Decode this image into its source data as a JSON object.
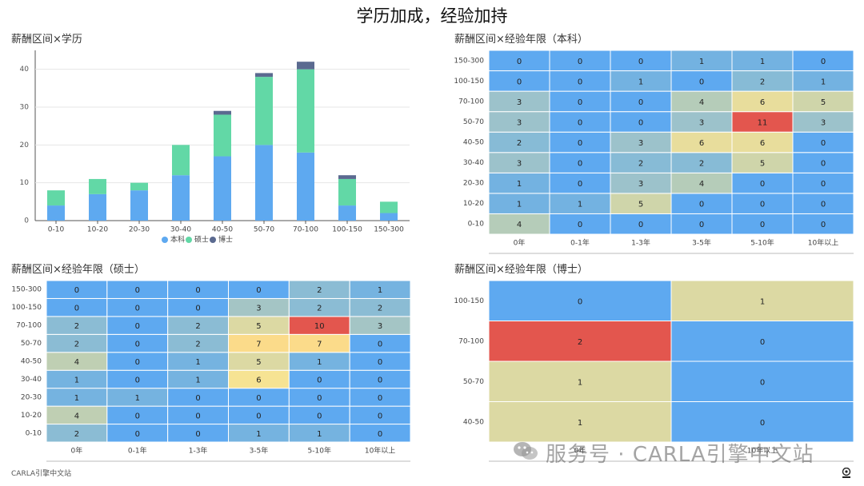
{
  "page_title": "学历加成，经验加持",
  "footer": "CARLA引擎中文站",
  "watermark": "服务号 · CARLA引擎中文站",
  "icons": {
    "wechat": "wechat-icon",
    "corner": "carla-logo-icon"
  },
  "colors": {
    "heat_low": "#5ea9f0",
    "heat_scale": [
      "#5ea9f0",
      "#7bb6dc",
      "#96c0cf",
      "#b8cdb7",
      "#dcd9a3",
      "#fde58f",
      "#fad486",
      "#f5a97a",
      "#e3564e"
    ],
    "bachelor": "#5ea9f0",
    "master": "#62d8a6",
    "phd": "#5b6a90"
  },
  "chart_data": [
    {
      "type": "bar",
      "stacked": true,
      "title": "薪酬区间×学历",
      "categories": [
        "0-10",
        "10-20",
        "20-30",
        "30-40",
        "40-50",
        "50-70",
        "70-100",
        "100-150",
        "150-300"
      ],
      "series": [
        {
          "name": "本科",
          "values": [
            4,
            7,
            8,
            12,
            17,
            20,
            18,
            4,
            2
          ]
        },
        {
          "name": "硕士",
          "values": [
            4,
            4,
            2,
            8,
            11,
            18,
            22,
            7,
            3
          ]
        },
        {
          "name": "博士",
          "values": [
            0,
            0,
            0,
            0,
            1,
            1,
            2,
            1,
            0
          ]
        }
      ],
      "ylim": [
        0,
        45
      ],
      "yticks": [
        0,
        10,
        20,
        30,
        40
      ],
      "grid": true,
      "legend": "bottom"
    },
    {
      "type": "heatmap",
      "title": "薪酬区间×经验年限（本科）",
      "x": [
        "0年",
        "0-1年",
        "1-3年",
        "3-5年",
        "5-10年",
        "10年以上"
      ],
      "y": [
        "0-10",
        "10-20",
        "20-30",
        "30-40",
        "40-50",
        "50-70",
        "70-100",
        "100-150",
        "150-300"
      ],
      "max": 11,
      "values": [
        [
          4,
          0,
          0,
          0,
          0,
          0
        ],
        [
          1,
          1,
          5,
          0,
          0,
          0
        ],
        [
          1,
          0,
          3,
          4,
          0,
          0
        ],
        [
          3,
          0,
          2,
          2,
          5,
          0
        ],
        [
          2,
          0,
          3,
          6,
          6,
          0
        ],
        [
          3,
          0,
          0,
          3,
          11,
          3
        ],
        [
          3,
          0,
          0,
          4,
          6,
          5
        ],
        [
          0,
          0,
          1,
          0,
          2,
          1
        ],
        [
          0,
          0,
          0,
          1,
          1,
          0
        ]
      ]
    },
    {
      "type": "heatmap",
      "title": "薪酬区间×经验年限（硕士）",
      "x": [
        "0年",
        "0-1年",
        "1-3年",
        "3-5年",
        "5-10年",
        "10年以上"
      ],
      "y": [
        "0-10",
        "10-20",
        "20-30",
        "30-40",
        "40-50",
        "50-70",
        "70-100",
        "100-150",
        "150-300"
      ],
      "max": 10,
      "values": [
        [
          2,
          0,
          0,
          1,
          1,
          0
        ],
        [
          4,
          0,
          0,
          0,
          0,
          0
        ],
        [
          1,
          1,
          0,
          0,
          0,
          0
        ],
        [
          1,
          0,
          1,
          6,
          0,
          0
        ],
        [
          4,
          0,
          1,
          5,
          1,
          0
        ],
        [
          2,
          0,
          2,
          7,
          7,
          0
        ],
        [
          2,
          0,
          2,
          5,
          10,
          3
        ],
        [
          0,
          0,
          0,
          3,
          2,
          2
        ],
        [
          0,
          0,
          0,
          0,
          2,
          1
        ]
      ]
    },
    {
      "type": "heatmap",
      "title": "薪酬区间×经验年限（博士）",
      "x": [
        "0年",
        "10年以上"
      ],
      "y": [
        "40-50",
        "50-70",
        "70-100",
        "100-150"
      ],
      "max": 2,
      "values": [
        [
          1,
          0
        ],
        [
          1,
          0
        ],
        [
          2,
          0
        ],
        [
          0,
          1
        ]
      ]
    }
  ]
}
